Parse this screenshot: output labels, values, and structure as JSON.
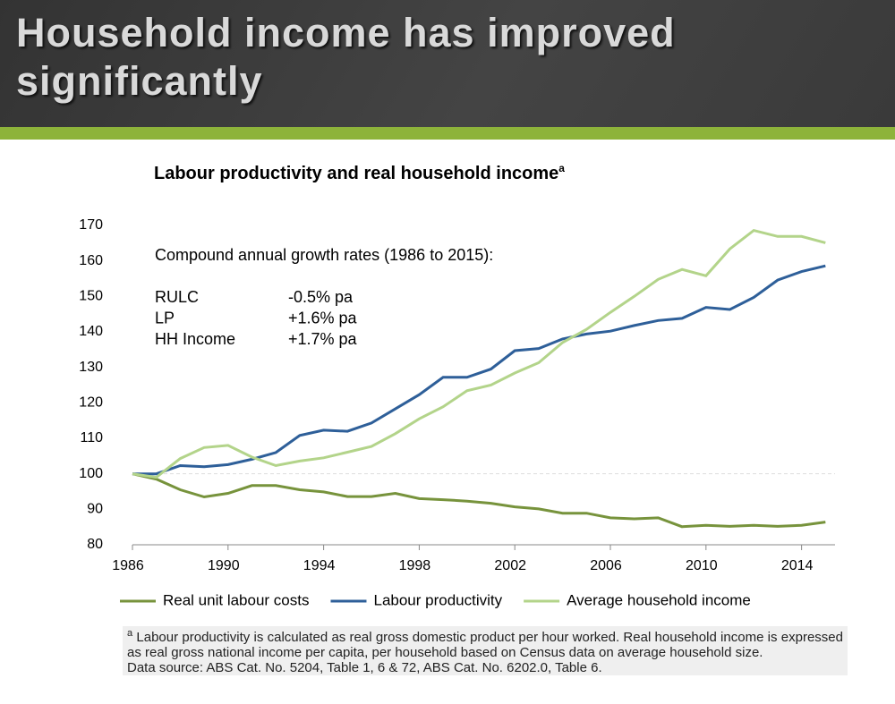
{
  "header": {
    "title": "Household income has improved significantly"
  },
  "chart_data": {
    "type": "line",
    "title": "Labour productivity and real household income",
    "title_note": "a",
    "x": [
      1986,
      1987,
      1988,
      1989,
      1990,
      1991,
      1992,
      1993,
      1994,
      1995,
      1996,
      1997,
      1998,
      1999,
      2000,
      2001,
      2002,
      2003,
      2004,
      2005,
      2006,
      2007,
      2008,
      2009,
      2010,
      2011,
      2012,
      2013,
      2014,
      2015
    ],
    "series": [
      {
        "name": "Real unit labour costs",
        "color": "#77933c",
        "values": [
          100,
          98.5,
          95.5,
          93.5,
          94.5,
          96.7,
          96.7,
          95.5,
          94.9,
          93.6,
          93.6,
          94.5,
          93.0,
          92.7,
          92.3,
          91.7,
          90.7,
          90.1,
          88.9,
          88.9,
          87.6,
          87.3,
          87.6,
          85.1,
          85.5,
          85.2,
          85.5,
          85.2,
          85.5,
          86.4
        ]
      },
      {
        "name": "Labour productivity",
        "color": "#2e5f99",
        "values": [
          100,
          100,
          102.3,
          102.0,
          102.6,
          104.1,
          106.0,
          110.8,
          112.3,
          112.0,
          114.3,
          118.3,
          122.3,
          127.2,
          127.2,
          129.5,
          134.7,
          135.3,
          138.0,
          139.4,
          140.2,
          141.8,
          143.2,
          143.8,
          146.9,
          146.3,
          149.7,
          154.6,
          157.0,
          158.6
        ]
      },
      {
        "name": "Average household income",
        "color": "#b3d48a",
        "values": [
          100,
          99,
          104.3,
          107.4,
          108.0,
          104.7,
          102.3,
          103.6,
          104.5,
          106.1,
          107.7,
          111.3,
          115.5,
          118.9,
          123.4,
          125.0,
          128.4,
          131.3,
          137.0,
          140.7,
          145.5,
          150.0,
          154.8,
          157.6,
          155.8,
          163.4,
          168.6,
          166.9,
          166.9,
          165.1
        ]
      }
    ],
    "xlim": [
      1986,
      2015.4
    ],
    "xticks": [
      1986,
      1990,
      1994,
      1998,
      2002,
      2006,
      2010,
      2014
    ],
    "ylim": [
      80,
      170
    ],
    "yticks": [
      80,
      90,
      100,
      110,
      120,
      130,
      140,
      150,
      160,
      170
    ],
    "reference_line": 100,
    "legend": "bottom",
    "annotation": {
      "heading": "Compound annual growth rates (1986 to 2015):",
      "rows": [
        [
          "RULC",
          "-0.5% pa"
        ],
        [
          "LP",
          "+1.6% pa"
        ],
        [
          "HH Income",
          "+1.7% pa"
        ]
      ]
    },
    "note_marker": "a",
    "note": "Labour productivity is calculated as real gross domestic product per hour worked. Real household income is expressed as real gross national income per capita, per household based on Census data on average household size.",
    "source": "Data source: ABS Cat. No. 5204, Table 1, 6 & 72, ABS Cat. No. 6202.0, Table 6."
  }
}
